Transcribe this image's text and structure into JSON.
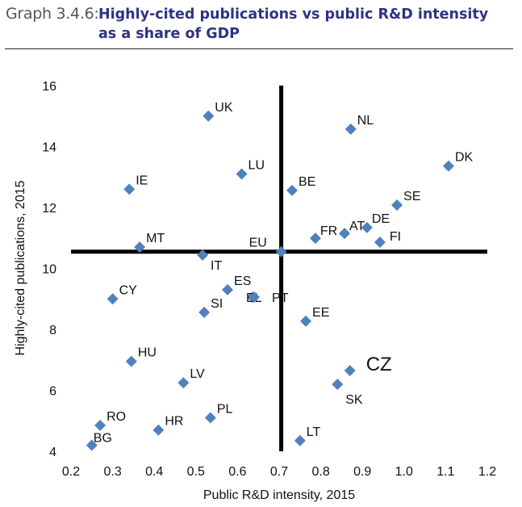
{
  "header": {
    "graph_number": "Graph 3.4.6:",
    "title": "Highly-cited publications vs public R&D intensity as a share of GDP"
  },
  "chart_data": {
    "type": "scatter",
    "title": "Highly-cited publications vs public R&D intensity as a share of GDP",
    "xlabel": "Public R&D intensity, 2015",
    "ylabel": "Highly-cited publications, 2015",
    "xlim": [
      0.2,
      1.2
    ],
    "ylim": [
      4,
      16
    ],
    "xticks": [
      "0.2",
      "0.3",
      "0.4",
      "0.5",
      "0.6",
      "0.7",
      "0.8",
      "0.9",
      "1.0",
      "1.1",
      "1.2"
    ],
    "yticks": [
      "4",
      "6",
      "8",
      "10",
      "12",
      "14",
      "16"
    ],
    "grid": false,
    "marker_color": "#4f81bd",
    "reference_lines": {
      "x": 0.705,
      "y": 10.55
    },
    "points": [
      {
        "label": "UK",
        "x": 0.53,
        "y": 15.0
      },
      {
        "label": "NL",
        "x": 0.872,
        "y": 14.57
      },
      {
        "label": "DK",
        "x": 1.107,
        "y": 13.36
      },
      {
        "label": "LU",
        "x": 0.61,
        "y": 13.1
      },
      {
        "label": "IE",
        "x": 0.34,
        "y": 12.6
      },
      {
        "label": "BE",
        "x": 0.731,
        "y": 12.56
      },
      {
        "label": "SE",
        "x": 0.983,
        "y": 12.08
      },
      {
        "label": "DE",
        "x": 0.911,
        "y": 11.34
      },
      {
        "label": "AT",
        "x": 0.857,
        "y": 11.15
      },
      {
        "label": "FR",
        "x": 0.787,
        "y": 10.99
      },
      {
        "label": "FI",
        "x": 0.942,
        "y": 10.86
      },
      {
        "label": "MT",
        "x": 0.365,
        "y": 10.7
      },
      {
        "label": "EU",
        "x": 0.705,
        "y": 10.55
      },
      {
        "label": "IT",
        "x": 0.516,
        "y": 10.44
      },
      {
        "label": "ES",
        "x": 0.576,
        "y": 9.3
      },
      {
        "label": "EL",
        "x": 0.636,
        "y": 9.06
      },
      {
        "label": "PT",
        "x": 0.64,
        "y": 9.06
      },
      {
        "label": "CY",
        "x": 0.3,
        "y": 9.0
      },
      {
        "label": "SI",
        "x": 0.52,
        "y": 8.56
      },
      {
        "label": "EE",
        "x": 0.764,
        "y": 8.27
      },
      {
        "label": "HU",
        "x": 0.345,
        "y": 6.95
      },
      {
        "label": "CZ",
        "x": 0.87,
        "y": 6.65
      },
      {
        "label": "LV",
        "x": 0.47,
        "y": 6.25
      },
      {
        "label": "SK",
        "x": 0.84,
        "y": 6.2
      },
      {
        "label": "PL",
        "x": 0.535,
        "y": 5.1
      },
      {
        "label": "RO",
        "x": 0.27,
        "y": 4.85
      },
      {
        "label": "HR",
        "x": 0.41,
        "y": 4.7
      },
      {
        "label": "LT",
        "x": 0.75,
        "y": 4.35
      },
      {
        "label": "BG",
        "x": 0.25,
        "y": 4.2
      }
    ]
  }
}
